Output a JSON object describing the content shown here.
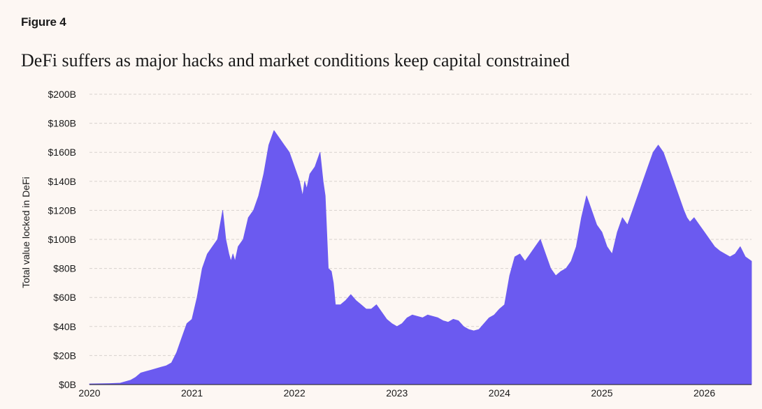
{
  "figure_label": "Figure 4",
  "chart_data": {
    "type": "area",
    "title": "DeFi suffers as major hacks and market conditions keep capital constrained",
    "xlabel": "",
    "ylabel": "Total value locked in DeFi",
    "ylim": [
      0,
      200
    ],
    "xlim": [
      2020.0,
      2026.46
    ],
    "y_unit": "billion USD",
    "y_ticks": [
      0,
      20,
      40,
      60,
      80,
      100,
      120,
      140,
      160,
      180,
      200
    ],
    "y_tick_labels": [
      "$0B",
      "$20B",
      "$40B",
      "$60B",
      "$80B",
      "$100B",
      "$120B",
      "$140B",
      "$160B",
      "$180B",
      "$200B"
    ],
    "x_ticks": [
      2020,
      2021,
      2022,
      2023,
      2024,
      2025,
      2026
    ],
    "x_tick_labels": [
      "2020",
      "2021",
      "2022",
      "2023",
      "2024",
      "2025",
      "2026"
    ],
    "grid": "horizontal dashed",
    "color": "#6b5af0",
    "series": [
      {
        "x": [
          2020.0,
          2020.1,
          2020.2,
          2020.3,
          2020.4,
          2020.45,
          2020.5,
          2020.55,
          2020.6,
          2020.65,
          2020.7,
          2020.75,
          2020.8,
          2020.85,
          2020.9,
          2020.95,
          2021.0,
          2021.05,
          2021.1,
          2021.15,
          2021.2,
          2021.25,
          2021.3,
          2021.33,
          2021.36,
          2021.38,
          2021.4,
          2021.42,
          2021.45,
          2021.5,
          2021.55,
          2021.6,
          2021.65,
          2021.7,
          2021.75,
          2021.8,
          2021.85,
          2021.9,
          2021.95,
          2022.0,
          2022.05,
          2022.08,
          2022.1,
          2022.12,
          2022.15,
          2022.2,
          2022.25,
          2022.28,
          2022.3,
          2022.33,
          2022.36,
          2022.38,
          2022.4,
          2022.45,
          2022.5,
          2022.55,
          2022.6,
          2022.65,
          2022.7,
          2022.75,
          2022.8,
          2022.85,
          2022.9,
          2022.95,
          2023.0,
          2023.05,
          2023.1,
          2023.15,
          2023.2,
          2023.25,
          2023.3,
          2023.35,
          2023.4,
          2023.45,
          2023.5,
          2023.55,
          2023.6,
          2023.65,
          2023.7,
          2023.75,
          2023.8,
          2023.85,
          2023.9,
          2023.95,
          2024.0,
          2024.05,
          2024.1,
          2024.15,
          2024.2,
          2024.25,
          2024.3,
          2024.35,
          2024.4,
          2024.45,
          2024.5,
          2024.55,
          2024.6,
          2024.65,
          2024.7,
          2024.75,
          2024.8,
          2024.85,
          2024.9,
          2024.95,
          2025.0,
          2025.05,
          2025.1,
          2025.15,
          2025.2,
          2025.25,
          2025.3,
          2025.35,
          2025.4,
          2025.45,
          2025.5,
          2025.55,
          2025.6,
          2025.65,
          2025.7,
          2025.75,
          2025.8,
          2025.83,
          2025.86,
          2025.9,
          2025.95,
          2026.0,
          2026.05,
          2026.1,
          2026.15,
          2026.2,
          2026.25,
          2026.3,
          2026.35,
          2026.4,
          2026.46
        ],
        "values": [
          0.5,
          0.6,
          0.7,
          1,
          3,
          5,
          8,
          9,
          10,
          11,
          12,
          13,
          15,
          22,
          32,
          42,
          45,
          60,
          80,
          90,
          95,
          100,
          120,
          100,
          90,
          85,
          90,
          85,
          95,
          100,
          115,
          120,
          130,
          145,
          165,
          175,
          170,
          165,
          160,
          150,
          140,
          130,
          140,
          135,
          145,
          150,
          160,
          140,
          130,
          80,
          78,
          70,
          55,
          55,
          58,
          62,
          58,
          55,
          52,
          52,
          55,
          50,
          45,
          42,
          40,
          42,
          46,
          48,
          47,
          46,
          48,
          47,
          46,
          44,
          43,
          45,
          44,
          40,
          38,
          37,
          38,
          42,
          46,
          48,
          52,
          55,
          75,
          88,
          90,
          85,
          90,
          95,
          100,
          90,
          80,
          75,
          78,
          80,
          85,
          95,
          115,
          130,
          120,
          110,
          105,
          95,
          90,
          105,
          115,
          110,
          120,
          130,
          140,
          150,
          160,
          165,
          160,
          150,
          140,
          130,
          120,
          115,
          112,
          115,
          110,
          105,
          100,
          95,
          92,
          90,
          88,
          90,
          95,
          88,
          85
        ]
      }
    ]
  }
}
